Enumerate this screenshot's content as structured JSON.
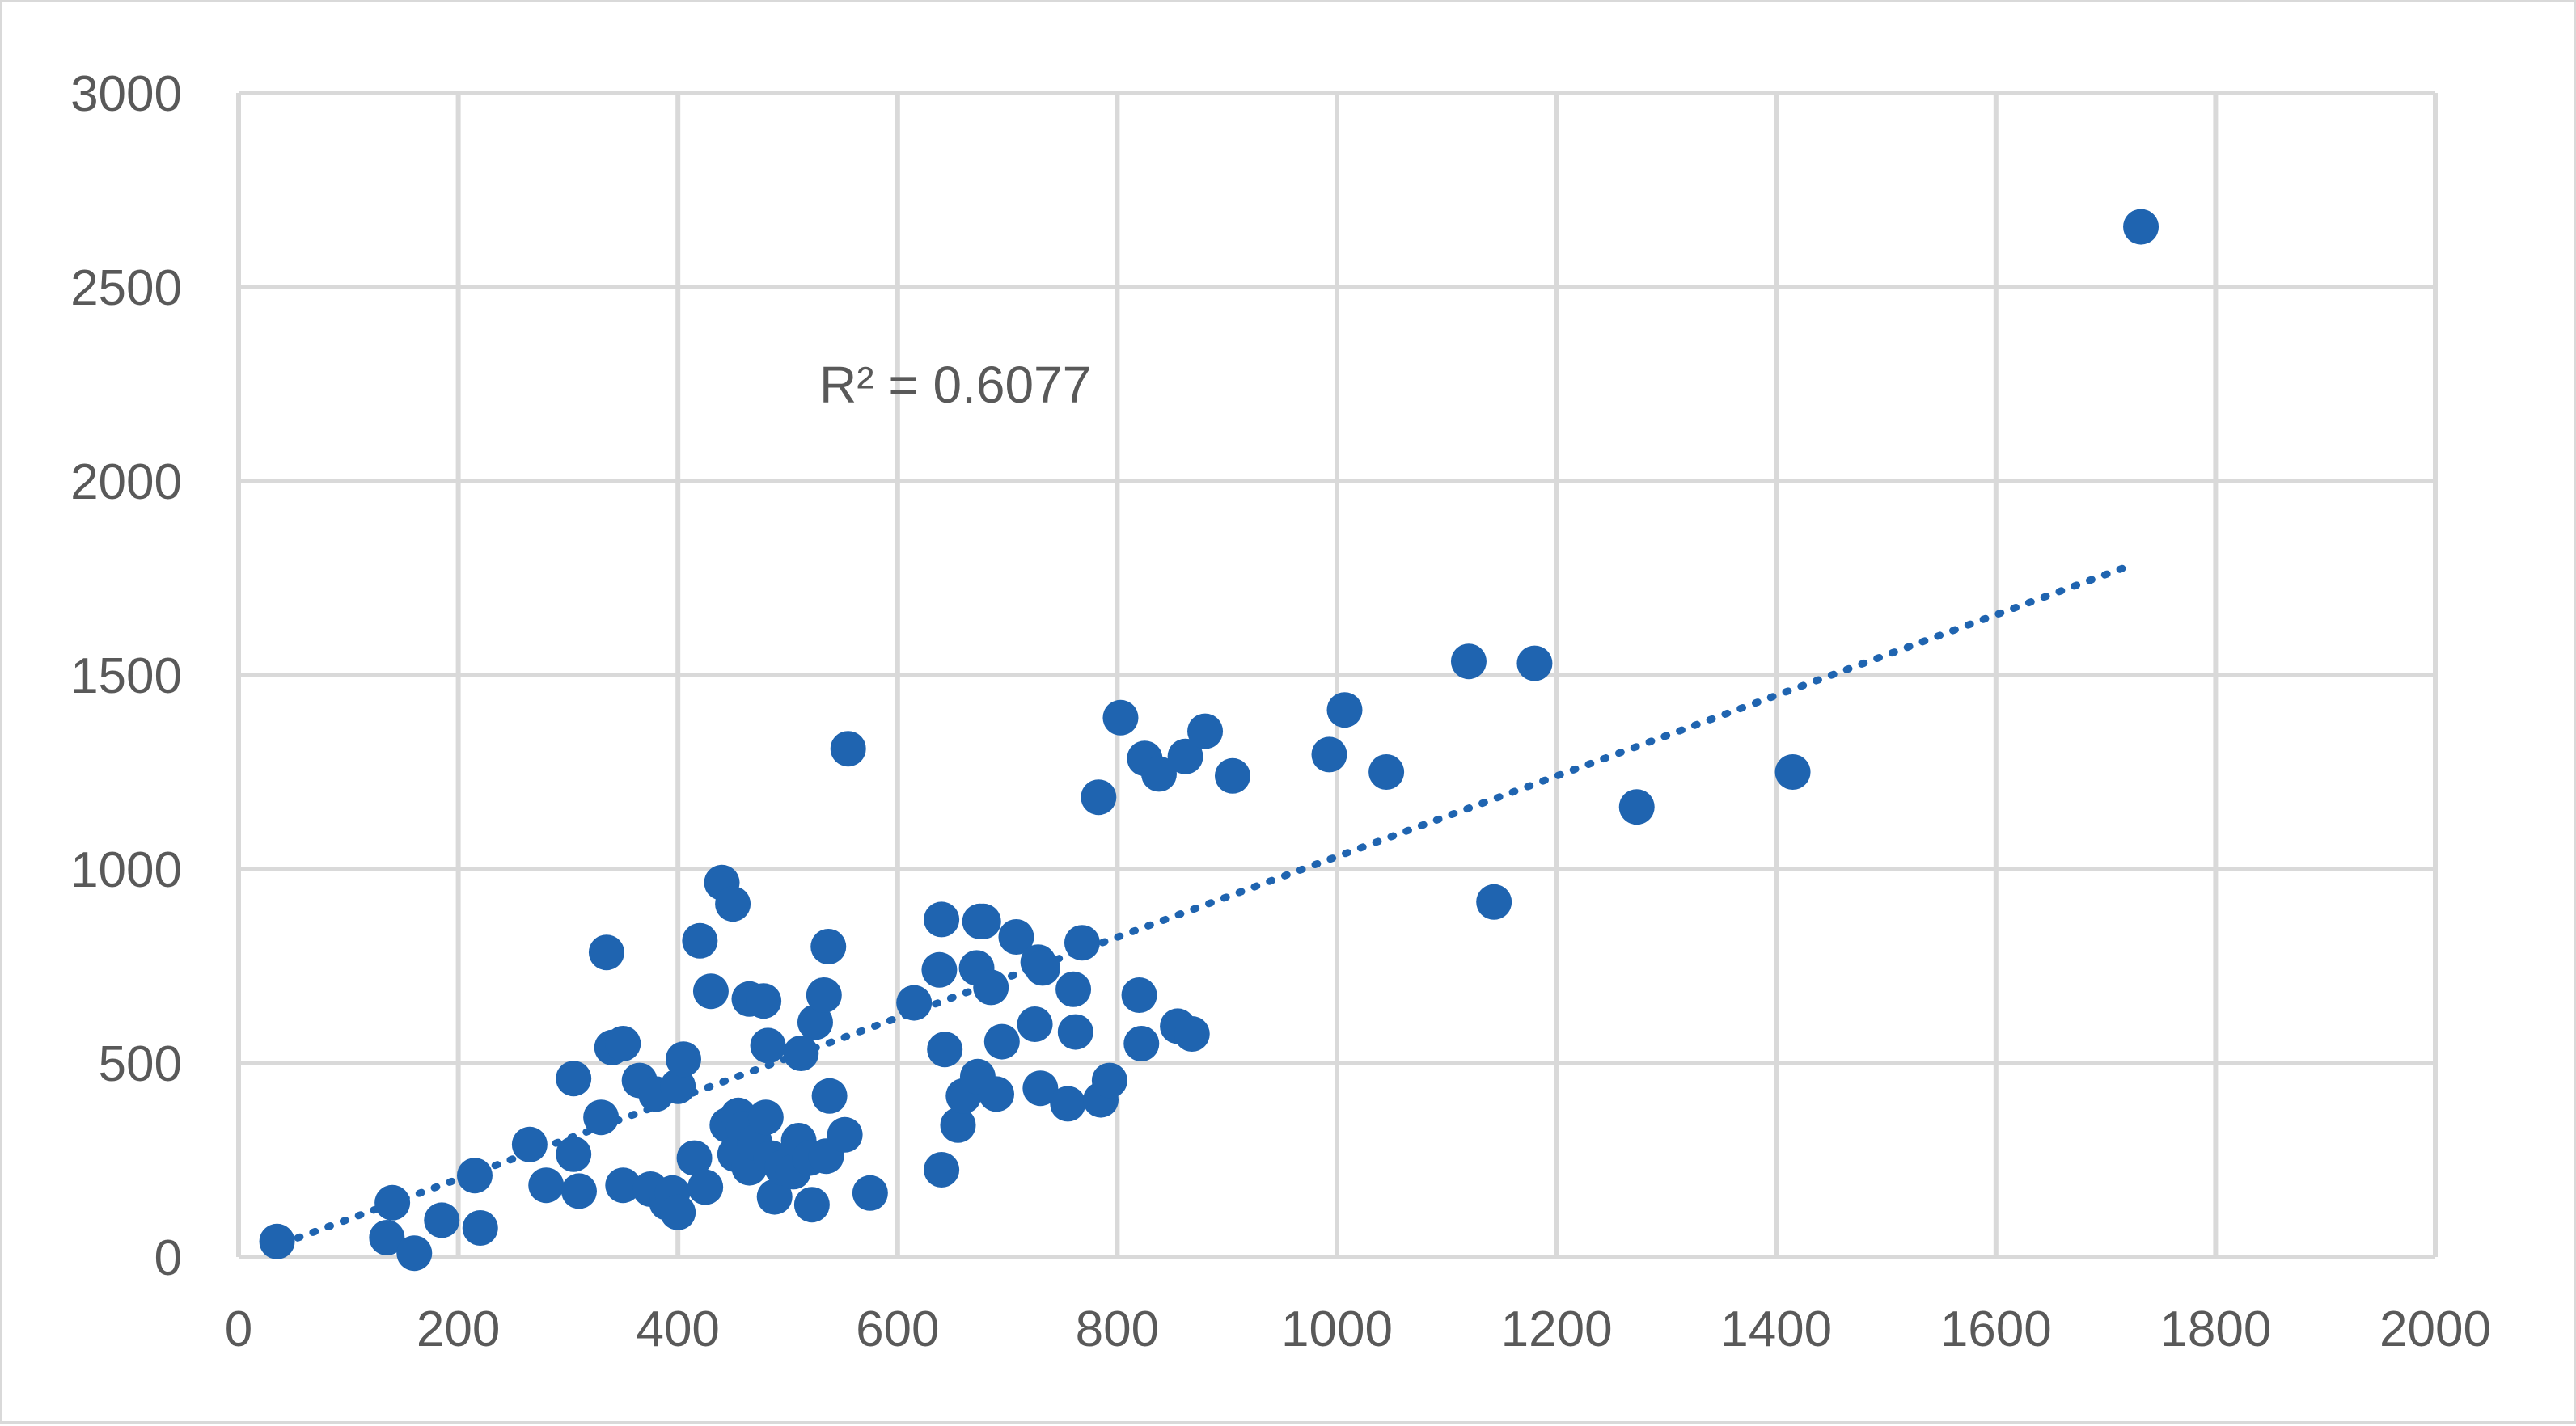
{
  "chart_data": {
    "type": "scatter",
    "title": "",
    "xlabel": "",
    "ylabel": "",
    "xlim": [
      0,
      2000
    ],
    "ylim": [
      0,
      3000
    ],
    "x_ticks": [
      0,
      200,
      400,
      600,
      800,
      1000,
      1200,
      1400,
      1600,
      1800,
      2000
    ],
    "y_ticks": [
      0,
      500,
      1000,
      1500,
      2000,
      2500,
      3000
    ],
    "x_tick_labels": [
      "0",
      "200",
      "400",
      "600",
      "800",
      "1000",
      "1200",
      "1400",
      "1600",
      "1800",
      "2000"
    ],
    "y_tick_labels": [
      "0",
      "500",
      "1000",
      "1500",
      "2000",
      "2500",
      "3000"
    ],
    "grid": true,
    "legend": "none",
    "marker_color": "#1f64b0",
    "grid_color": "#d9d9d9",
    "series": [
      {
        "points": [
          [
            35,
            40
          ],
          [
            140,
            140
          ],
          [
            135,
            50
          ],
          [
            160,
            10
          ],
          [
            185,
            95
          ],
          [
            215,
            210
          ],
          [
            220,
            75
          ],
          [
            265,
            290
          ],
          [
            280,
            185
          ],
          [
            305,
            460
          ],
          [
            305,
            265
          ],
          [
            310,
            170
          ],
          [
            330,
            360
          ],
          [
            335,
            785
          ],
          [
            340,
            540
          ],
          [
            350,
            550
          ],
          [
            350,
            185
          ],
          [
            365,
            455
          ],
          [
            375,
            175
          ],
          [
            380,
            420
          ],
          [
            390,
            140
          ],
          [
            395,
            165
          ],
          [
            400,
            440
          ],
          [
            400,
            115
          ],
          [
            405,
            510
          ],
          [
            415,
            255
          ],
          [
            420,
            815
          ],
          [
            425,
            180
          ],
          [
            430,
            685
          ],
          [
            440,
            965
          ],
          [
            445,
            340
          ],
          [
            450,
            910
          ],
          [
            452,
            265
          ],
          [
            455,
            365
          ],
          [
            460,
            330
          ],
          [
            465,
            665
          ],
          [
            465,
            230
          ],
          [
            470,
            295
          ],
          [
            478,
            660
          ],
          [
            480,
            360
          ],
          [
            482,
            545
          ],
          [
            485,
            255
          ],
          [
            488,
            155
          ],
          [
            495,
            230
          ],
          [
            505,
            220
          ],
          [
            510,
            300
          ],
          [
            512,
            525
          ],
          [
            520,
            255
          ],
          [
            522,
            135
          ],
          [
            525,
            605
          ],
          [
            533,
            675
          ],
          [
            535,
            260
          ],
          [
            537,
            800
          ],
          [
            538,
            415
          ],
          [
            552,
            315
          ],
          [
            555,
            1310
          ],
          [
            575,
            165
          ],
          [
            615,
            655
          ],
          [
            638,
            740
          ],
          [
            640,
            870
          ],
          [
            640,
            225
          ],
          [
            643,
            535
          ],
          [
            655,
            340
          ],
          [
            660,
            415
          ],
          [
            672,
            745
          ],
          [
            673,
            465
          ],
          [
            675,
            865
          ],
          [
            678,
            865
          ],
          [
            685,
            695
          ],
          [
            690,
            420
          ],
          [
            695,
            555
          ],
          [
            708,
            825
          ],
          [
            725,
            600
          ],
          [
            728,
            760
          ],
          [
            730,
            435
          ],
          [
            732,
            745
          ],
          [
            755,
            395
          ],
          [
            760,
            690
          ],
          [
            762,
            580
          ],
          [
            768,
            810
          ],
          [
            783,
            1185
          ],
          [
            785,
            405
          ],
          [
            793,
            455
          ],
          [
            803,
            1390
          ],
          [
            820,
            675
          ],
          [
            822,
            550
          ],
          [
            825,
            1285
          ],
          [
            838,
            1245
          ],
          [
            855,
            595
          ],
          [
            862,
            1290
          ],
          [
            868,
            575
          ],
          [
            880,
            1355
          ],
          [
            905,
            1240
          ],
          [
            993,
            1295
          ],
          [
            1007,
            1410
          ],
          [
            1045,
            1250
          ],
          [
            1120,
            1535
          ],
          [
            1143,
            915
          ],
          [
            1180,
            1530
          ],
          [
            1273,
            1160
          ],
          [
            1415,
            1250
          ],
          [
            1732,
            2655
          ]
        ]
      }
    ],
    "trendline": {
      "type": "linear",
      "x_range": [
        40,
        1725
      ],
      "y_range": [
        35,
        1785
      ],
      "r_squared_label": "R² = 0.6077"
    }
  }
}
